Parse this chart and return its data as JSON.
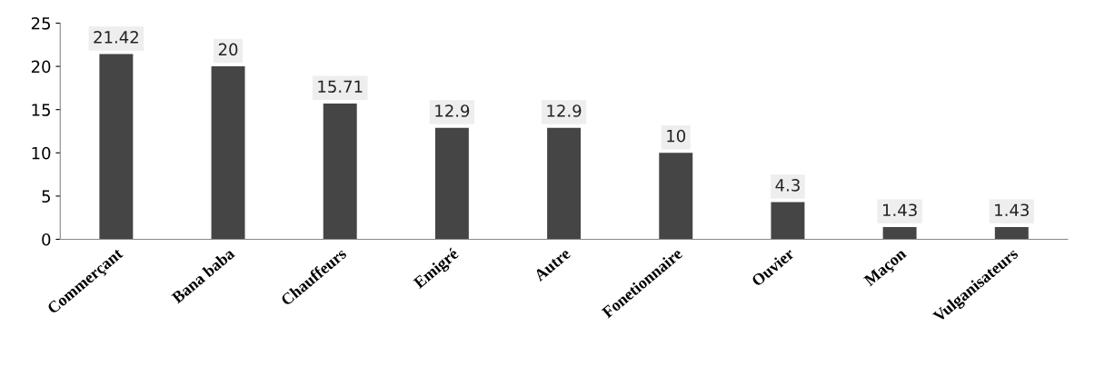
{
  "chart_data": {
    "type": "bar",
    "categories": [
      "Commerçant",
      "Bana baba",
      "Chauffeurs",
      "Emigré",
      "Autre",
      "Fonetionnaire",
      "Ouvier",
      "Maçon",
      "Vulganisateurs"
    ],
    "values": [
      21.42,
      20,
      15.71,
      12.9,
      12.9,
      10,
      4.3,
      1.43,
      1.43
    ],
    "value_labels": [
      "21.42",
      "20",
      "15.71",
      "12.9",
      "12.9",
      "10",
      "4.3",
      "1.43",
      "1.43"
    ],
    "color": "#454545",
    "ylim": [
      0,
      25
    ],
    "yticks": [
      0,
      5,
      10,
      15,
      20,
      25
    ],
    "grid": false,
    "legend": false
  }
}
